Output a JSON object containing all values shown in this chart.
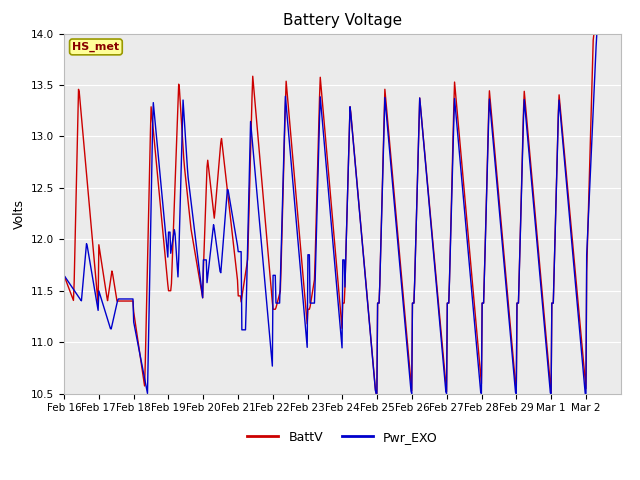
{
  "title": "Battery Voltage",
  "ylabel": "Volts",
  "ylim": [
    10.5,
    14.0
  ],
  "yticks": [
    10.5,
    11.0,
    11.5,
    12.0,
    12.5,
    13.0,
    13.5,
    14.0
  ],
  "xtick_labels": [
    "Feb 16",
    "Feb 17",
    "Feb 18",
    "Feb 19",
    "Feb 20",
    "Feb 21",
    "Feb 22",
    "Feb 23",
    "Feb 24",
    "Feb 25",
    "Feb 26",
    "Feb 27",
    "Feb 28",
    "Feb 29",
    "Mar 1",
    "Mar 2"
  ],
  "series_colors": {
    "BattV": "#cc0000",
    "Pwr_EXO": "#0000cc"
  },
  "annotation_text": "HS_met",
  "annotation_bbox_facecolor": "#ffff99",
  "annotation_bbox_edgecolor": "#999900",
  "fig_bg_color": "#ffffff",
  "plot_bg_color": "#ebebeb",
  "title_fontsize": 11,
  "axis_label_fontsize": 9,
  "tick_fontsize": 7.5,
  "legend_fontsize": 9
}
